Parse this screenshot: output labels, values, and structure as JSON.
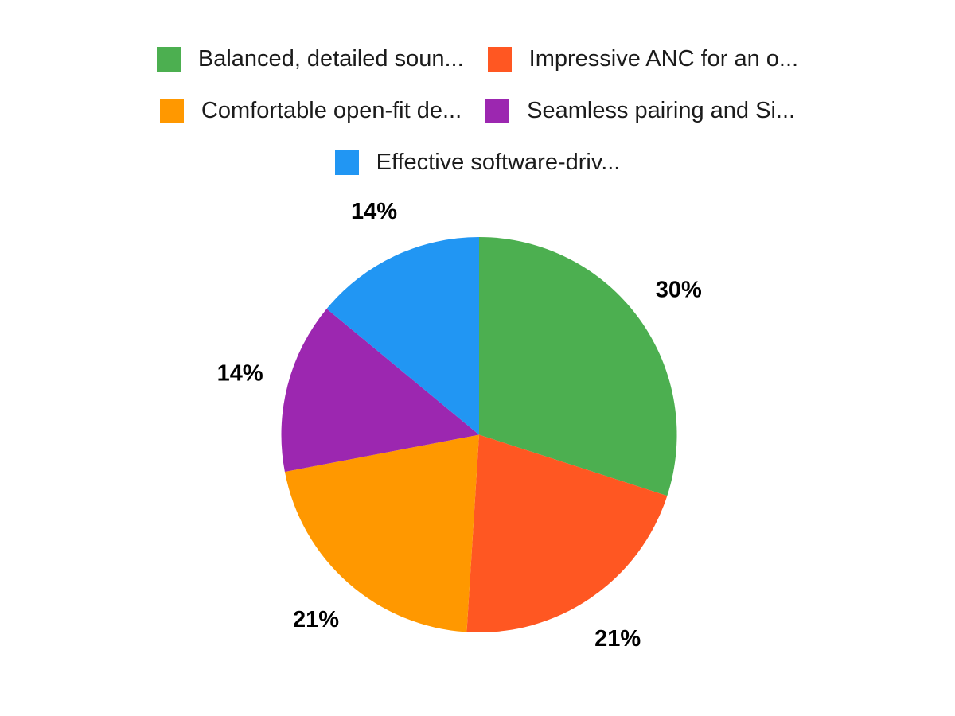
{
  "chart_data": {
    "type": "pie",
    "title": "",
    "background": "#ffffff",
    "label_format": "percent",
    "label_color": "#000000",
    "start_angle_deg": 0,
    "direction": "clockwise",
    "legend_position": "top",
    "legend_rows": [
      [
        0,
        1
      ],
      [
        2,
        3
      ],
      [
        4
      ]
    ],
    "slices": [
      {
        "label": "Balanced, detailed soun...",
        "value": 30,
        "display": "30%",
        "color": "#4CAF50"
      },
      {
        "label": "Impressive ANC for an o...",
        "value": 21,
        "display": "21%",
        "color": "#FF5722"
      },
      {
        "label": "Comfortable open-fit de...",
        "value": 21,
        "display": "21%",
        "color": "#FF9800"
      },
      {
        "label": "Seamless pairing and Si...",
        "value": 14,
        "display": "14%",
        "color": "#9C27B0"
      },
      {
        "label": "Effective software-driv...",
        "value": 14,
        "display": "14%",
        "color": "#2196F3"
      }
    ]
  }
}
